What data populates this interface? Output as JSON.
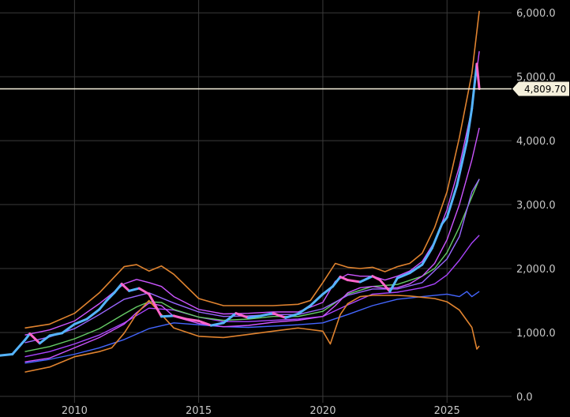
{
  "chart_data": {
    "type": "line",
    "title": "",
    "xlabel": "",
    "ylabel": "",
    "x_ticks": [
      "2010",
      "2015",
      "2020",
      "2025"
    ],
    "y_ticks": [
      "0.0",
      "1,000.0",
      "2,000.0",
      "3,000.0",
      "4,000.0",
      "5,000.0",
      "6,000.0"
    ],
    "xlim": [
      2007.0,
      2027.6
    ],
    "ylim": [
      -100,
      6200
    ],
    "grid": true,
    "current_price": {
      "value": 4809.7,
      "label": "4,809.70"
    },
    "colors": {
      "background": "#000000",
      "grid": "#3a3a3a",
      "price_line": "#f5f0dc",
      "candle_up": "#55b4ff",
      "candle_down": "#ff66cc",
      "outer_band": "#e0832f",
      "inner_band": "#cc55ff",
      "mid_band": "#9966ff",
      "middle_ma": "#66cc66",
      "long_ma": "#4466ff",
      "long_ma_top": "#aa44ff"
    },
    "series": [
      {
        "key": "price",
        "x": [
          2007.0,
          2007.5,
          2008.0,
          2008.2,
          2008.6,
          2009.0,
          2009.5,
          2010.0,
          2010.5,
          2011.0,
          2011.3,
          2011.6,
          2011.9,
          2012.2,
          2012.6,
          2013.0,
          2013.5,
          2014.0,
          2014.5,
          2015.0,
          2015.5,
          2016.0,
          2016.5,
          2017.0,
          2017.5,
          2018.0,
          2018.5,
          2019.0,
          2019.5,
          2020.0,
          2020.4,
          2020.7,
          2021.0,
          2021.5,
          2022.0,
          2022.3,
          2022.7,
          2023.0,
          2023.5,
          2024.0,
          2024.4,
          2024.8,
          2025.0,
          2025.4,
          2025.8,
          2026.0,
          2026.2,
          2026.3
        ],
        "y": [
          640,
          660,
          880,
          980,
          830,
          950,
          990,
          1130,
          1210,
          1360,
          1500,
          1620,
          1760,
          1650,
          1690,
          1600,
          1250,
          1260,
          1210,
          1180,
          1110,
          1150,
          1300,
          1230,
          1260,
          1300,
          1230,
          1290,
          1420,
          1600,
          1720,
          1870,
          1820,
          1790,
          1880,
          1820,
          1640,
          1850,
          1930,
          2060,
          2320,
          2700,
          2800,
          3300,
          3990,
          4500,
          5200,
          4810
        ]
      },
      {
        "key": "outer_upper",
        "x": [
          2008.0,
          2009.0,
          2010.0,
          2011.0,
          2012.0,
          2012.5,
          2013.0,
          2013.5,
          2014.0,
          2015.0,
          2016.0,
          2017.0,
          2018.0,
          2019.0,
          2019.5,
          2020.0,
          2020.5,
          2021.0,
          2021.5,
          2022.0,
          2022.5,
          2023.0,
          2023.5,
          2024.0,
          2024.5,
          2025.0,
          2025.5,
          2026.0,
          2026.3
        ],
        "y": [
          1070,
          1130,
          1300,
          1620,
          2030,
          2060,
          1960,
          2040,
          1910,
          1530,
          1420,
          1420,
          1420,
          1440,
          1500,
          1780,
          2080,
          2020,
          2000,
          2020,
          1950,
          2030,
          2080,
          2240,
          2640,
          3200,
          4050,
          5050,
          6030
        ]
      },
      {
        "key": "outer_lower",
        "x": [
          2008.0,
          2009.0,
          2010.0,
          2011.0,
          2011.5,
          2012.0,
          2012.5,
          2013.0,
          2013.5,
          2014.0,
          2015.0,
          2016.0,
          2017.0,
          2018.0,
          2019.0,
          2020.0,
          2020.3,
          2020.7,
          2021.0,
          2021.5,
          2022.0,
          2022.5,
          2023.0,
          2023.5,
          2024.0,
          2024.5,
          2025.0,
          2025.5,
          2026.0,
          2026.2,
          2026.3
        ],
        "y": [
          380,
          460,
          620,
          700,
          760,
          990,
          1290,
          1500,
          1280,
          1070,
          940,
          920,
          970,
          1020,
          1070,
          1020,
          820,
          1280,
          1450,
          1560,
          1580,
          1580,
          1580,
          1570,
          1550,
          1530,
          1480,
          1350,
          1080,
          740,
          790
        ]
      },
      {
        "key": "inner_upper",
        "x": [
          2008.0,
          2009.0,
          2010.0,
          2011.0,
          2012.0,
          2012.5,
          2013.0,
          2013.5,
          2014.0,
          2015.0,
          2016.0,
          2017.0,
          2018.0,
          2019.0,
          2020.0,
          2020.5,
          2021.0,
          2021.5,
          2022.0,
          2022.5,
          2023.0,
          2023.5,
          2024.0,
          2024.5,
          2025.0,
          2025.5,
          2026.0,
          2026.3
        ],
        "y": [
          960,
          1040,
          1180,
          1450,
          1760,
          1830,
          1780,
          1720,
          1560,
          1360,
          1290,
          1300,
          1320,
          1320,
          1470,
          1800,
          1910,
          1880,
          1880,
          1820,
          1880,
          1960,
          2110,
          2420,
          2920,
          3600,
          4500,
          5400
        ]
      },
      {
        "key": "inner_lower",
        "x": [
          2008.0,
          2009.0,
          2010.0,
          2011.0,
          2012.0,
          2012.5,
          2013.0,
          2013.5,
          2014.0,
          2015.0,
          2016.0,
          2017.0,
          2018.0,
          2019.0,
          2020.0,
          2020.5,
          2021.0,
          2021.5,
          2022.0,
          2022.5,
          2023.0,
          2023.5,
          2024.0,
          2024.5,
          2025.0,
          2025.5,
          2026.0,
          2026.3
        ],
        "y": [
          540,
          600,
          760,
          920,
          1130,
          1310,
          1460,
          1420,
          1250,
          1140,
          1090,
          1110,
          1160,
          1190,
          1250,
          1420,
          1620,
          1700,
          1720,
          1690,
          1700,
          1760,
          1880,
          2080,
          2450,
          3000,
          3700,
          4200
        ]
      },
      {
        "key": "mid_upper",
        "x": [
          2008.0,
          2009.0,
          2010.0,
          2011.0,
          2012.0,
          2013.0,
          2014.0,
          2015.0,
          2016.0,
          2017.0,
          2018.0,
          2019.0,
          2020.0,
          2021.0,
          2022.0,
          2023.0,
          2024.0,
          2025.0,
          2025.5,
          2026.0,
          2026.3
        ],
        "y": [
          840,
          930,
          1060,
          1280,
          1520,
          1620,
          1460,
          1320,
          1250,
          1260,
          1280,
          1280,
          1370,
          1580,
          1680,
          1680,
          1780,
          2150,
          2500,
          3200,
          3400
        ]
      },
      {
        "key": "middle_ma",
        "x": [
          2008.0,
          2009.0,
          2010.0,
          2011.0,
          2012.0,
          2012.5,
          2013.0,
          2013.5,
          2014.0,
          2015.0,
          2016.0,
          2017.0,
          2018.0,
          2019.0,
          2020.0,
          2021.0,
          2022.0,
          2023.0,
          2024.0,
          2024.5,
          2025.0,
          2025.5,
          2026.0,
          2026.3
        ],
        "y": [
          700,
          780,
          900,
          1060,
          1290,
          1400,
          1480,
          1470,
          1360,
          1240,
          1190,
          1210,
          1250,
          1250,
          1330,
          1600,
          1720,
          1750,
          1880,
          2000,
          2250,
          2650,
          3120,
          3400
        ]
      },
      {
        "key": "mid_lower",
        "x": [
          2008.0,
          2009.0,
          2010.0,
          2011.0,
          2012.0,
          2013.0,
          2014.0,
          2015.0,
          2016.0,
          2017.0,
          2018.0,
          2019.0,
          2020.0,
          2021.0,
          2022.0,
          2023.0,
          2024.0,
          2024.5,
          2025.0,
          2025.5,
          2026.0,
          2026.3
        ],
        "y": [
          620,
          700,
          820,
          960,
          1150,
          1380,
          1350,
          1240,
          1170,
          1170,
          1190,
          1210,
          1250,
          1430,
          1600,
          1630,
          1700,
          1760,
          1900,
          2130,
          2400,
          2520
        ]
      },
      {
        "key": "long_ma",
        "x": [
          2008.0,
          2009.0,
          2010.0,
          2011.0,
          2012.0,
          2013.0,
          2014.0,
          2015.0,
          2016.0,
          2017.0,
          2018.0,
          2019.0,
          2020.0,
          2021.0,
          2022.0,
          2023.0,
          2024.0,
          2025.0,
          2025.5,
          2025.8,
          2026.0,
          2026.3
        ],
        "y": [
          520,
          580,
          660,
          760,
          890,
          1060,
          1150,
          1120,
          1090,
          1080,
          1100,
          1120,
          1150,
          1280,
          1420,
          1520,
          1560,
          1600,
          1560,
          1640,
          1560,
          1640
        ]
      }
    ]
  }
}
